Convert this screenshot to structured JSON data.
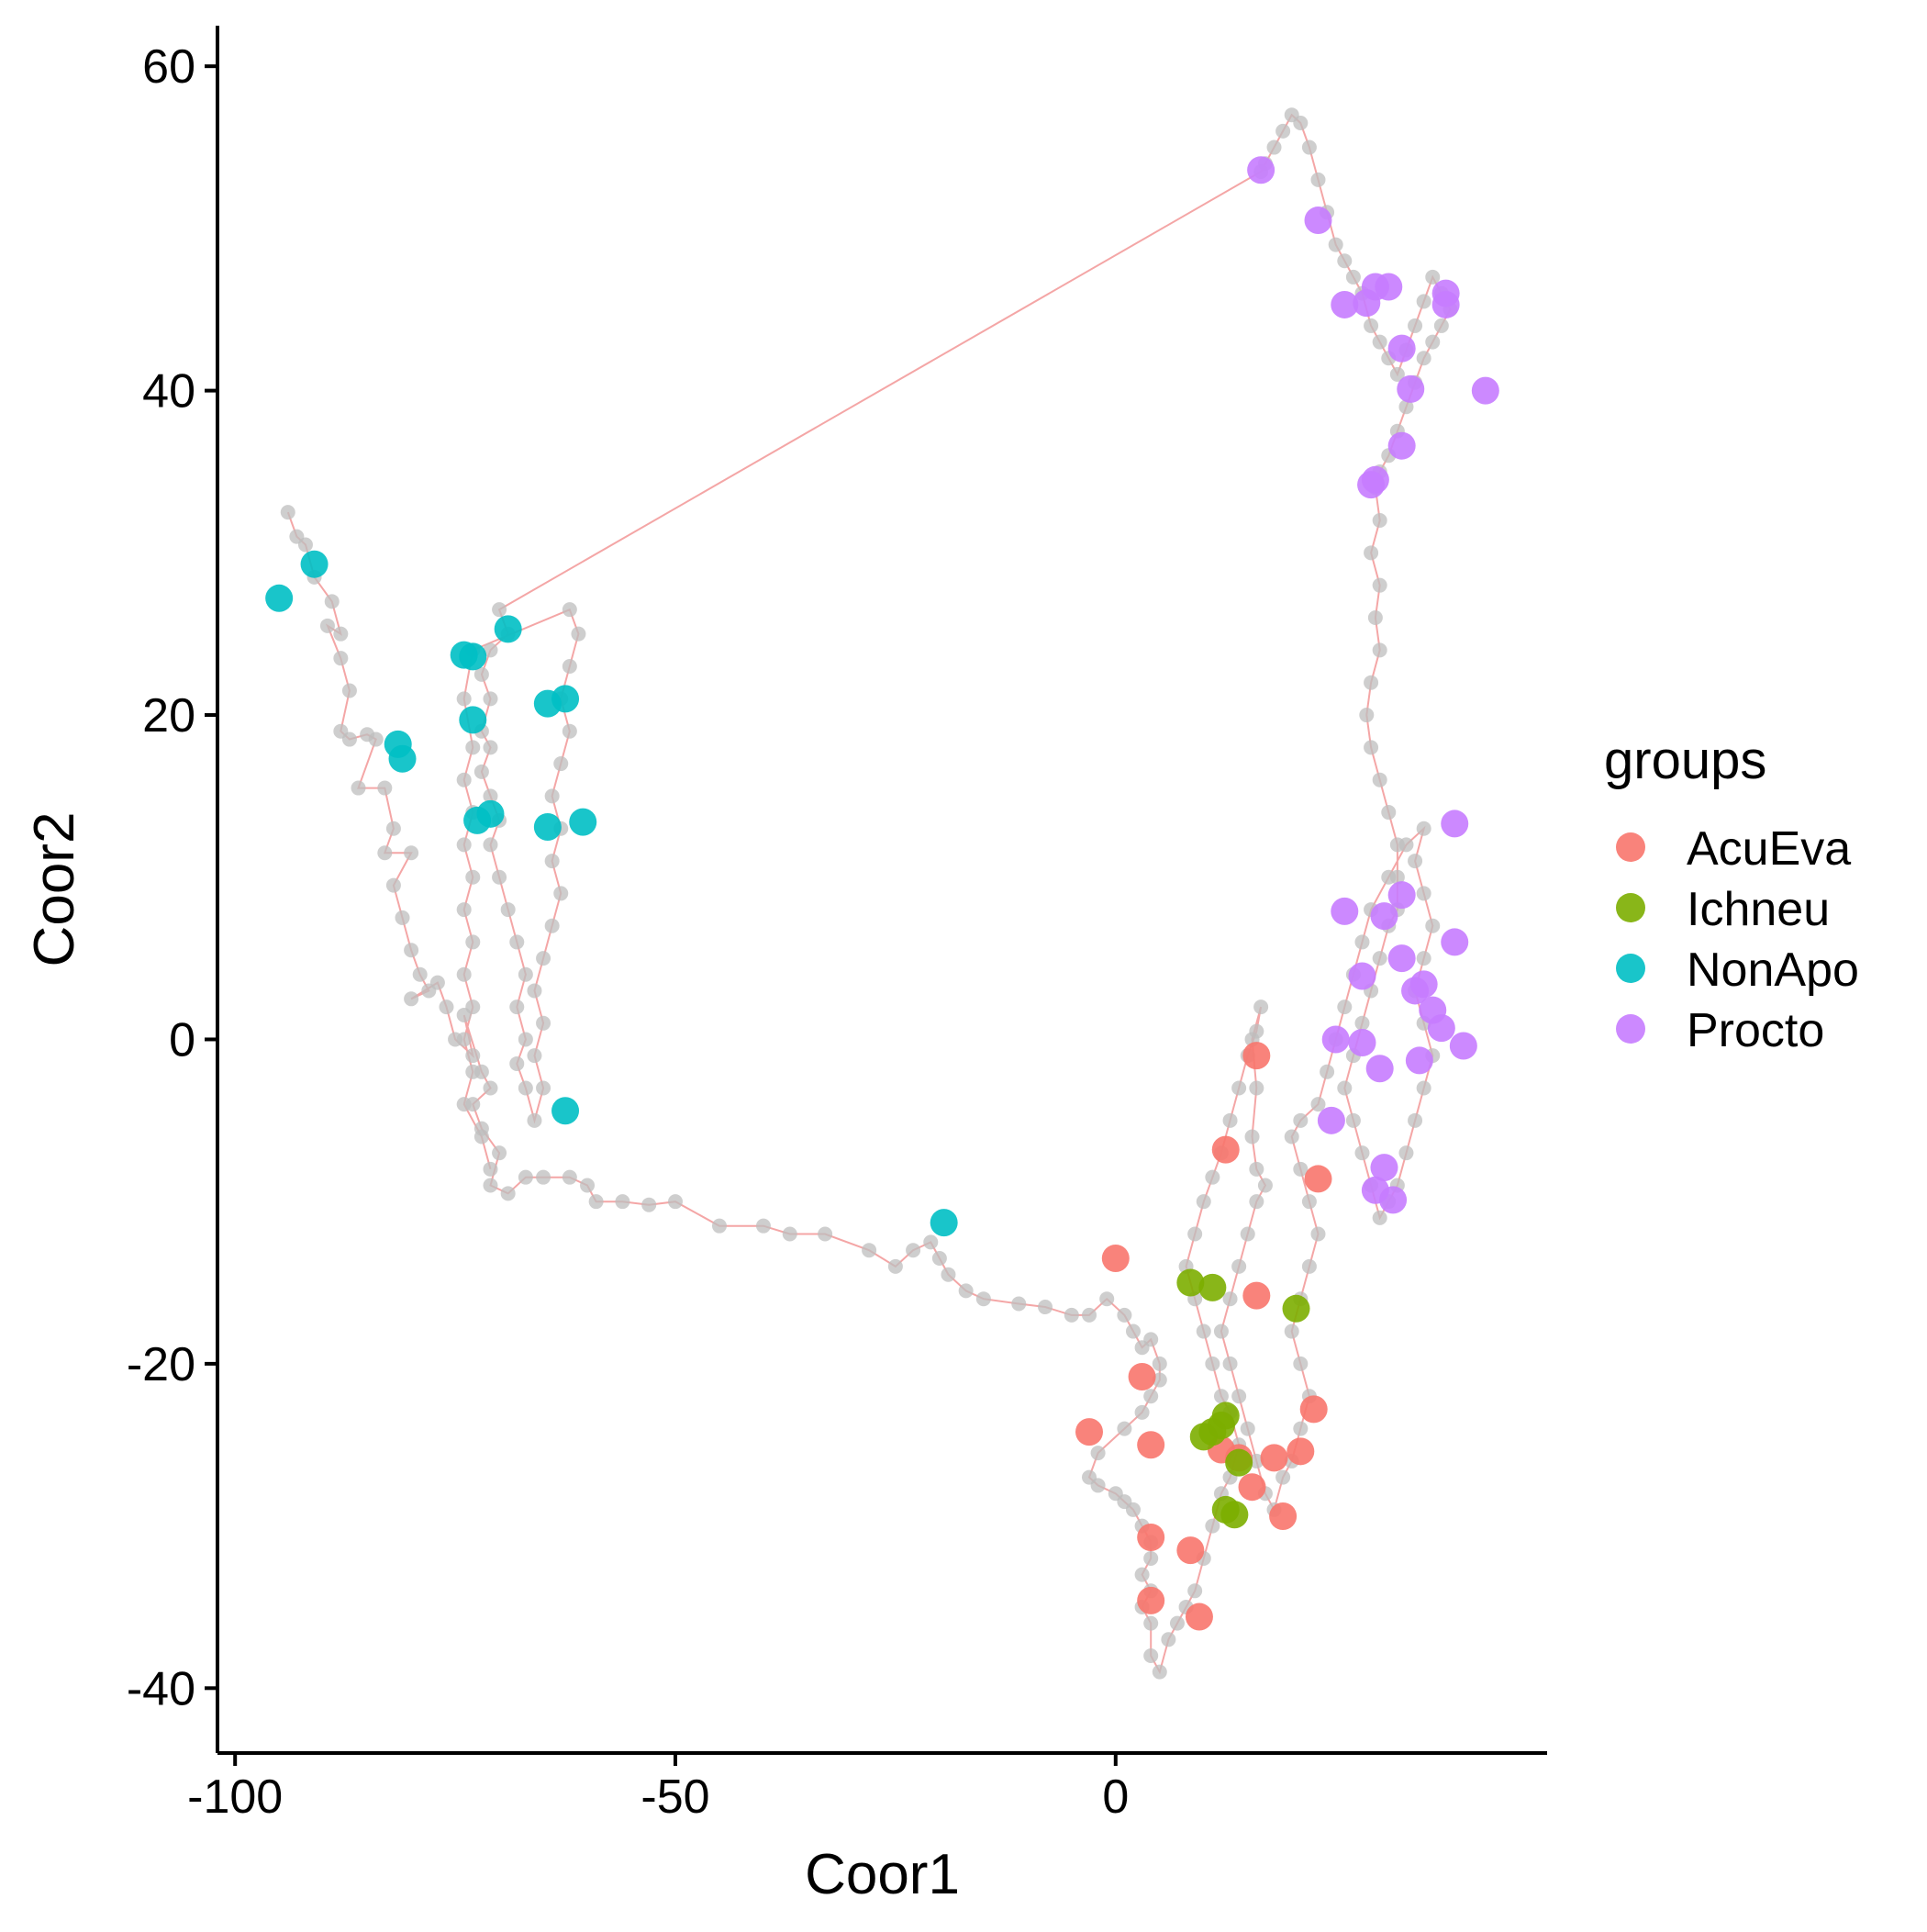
{
  "chart_data": {
    "type": "scatter",
    "title": "",
    "xlabel": "Coor1",
    "ylabel": "Coor2",
    "xlim": [
      -102,
      49
    ],
    "ylim": [
      -44,
      62.5
    ],
    "xticks": [
      -100,
      -50,
      0
    ],
    "xtick_labels": [
      "-100",
      "-50",
      "0"
    ],
    "yticks": [
      60,
      40,
      20,
      0,
      -20,
      -40
    ],
    "ytick_labels": [
      "60",
      "40",
      "20",
      "0",
      "-20",
      "-40"
    ],
    "grid": false,
    "legend": {
      "title": "groups",
      "placement": "right",
      "entries": [
        "AcuEva",
        "Ichneu",
        "NonApo",
        "Procto"
      ]
    },
    "background_path": {
      "point_color": "#bdbdbd",
      "line_color": "#f4a6a6",
      "points": [
        [
          -94,
          32.5
        ],
        [
          -93,
          31
        ],
        [
          -92,
          30.5
        ],
        [
          -91,
          28.5
        ],
        [
          -89,
          27
        ],
        [
          -88,
          25
        ],
        [
          -89.5,
          25.5
        ],
        [
          -88,
          23.5
        ],
        [
          -87,
          21.5
        ],
        [
          -88,
          19
        ],
        [
          -87,
          18.5
        ],
        [
          -85,
          18.8
        ],
        [
          -84,
          18.5
        ],
        [
          -86,
          15.5
        ],
        [
          -83,
          15.5
        ],
        [
          -82,
          13
        ],
        [
          -83,
          11.5
        ],
        [
          -80,
          11.5
        ],
        [
          -82,
          9.5
        ],
        [
          -81,
          7.5
        ],
        [
          -80,
          5.5
        ],
        [
          -79,
          4
        ],
        [
          -78,
          3
        ],
        [
          -80,
          2.5
        ],
        [
          -77,
          3.5
        ],
        [
          -76,
          2
        ],
        [
          -75,
          0
        ],
        [
          -73,
          -1
        ],
        [
          -74,
          1.5
        ],
        [
          -72,
          -2
        ],
        [
          -71,
          -3
        ],
        [
          -73,
          -4
        ],
        [
          -72,
          -5.5
        ],
        [
          -70,
          -7
        ],
        [
          -71,
          -9
        ],
        [
          -69,
          -9.5
        ],
        [
          -67,
          -8.5
        ],
        [
          -65,
          -8.5
        ],
        [
          -62,
          -8.5
        ],
        [
          -60,
          -9
        ],
        [
          -59,
          -10
        ],
        [
          -56,
          -10
        ],
        [
          -53,
          -10.2
        ],
        [
          -50,
          -10
        ],
        [
          -45,
          -11.5
        ],
        [
          -40,
          -11.5
        ],
        [
          -37,
          -12
        ],
        [
          -33,
          -12
        ],
        [
          -28,
          -13
        ],
        [
          -25,
          -14
        ],
        [
          -23,
          -13
        ],
        [
          -21,
          -12.5
        ],
        [
          -20,
          -13.5
        ],
        [
          -19,
          -14.5
        ],
        [
          -17,
          -15.5
        ],
        [
          -15,
          -16
        ],
        [
          -11,
          -16.3
        ],
        [
          -8,
          -16.5
        ],
        [
          -5,
          -17
        ],
        [
          -3,
          -17
        ],
        [
          -1,
          -16
        ],
        [
          1,
          -17
        ],
        [
          2,
          -18
        ],
        [
          3,
          -19
        ],
        [
          4,
          -18.5
        ],
        [
          5,
          -20
        ],
        [
          5,
          -21
        ],
        [
          4,
          -22
        ],
        [
          3,
          -23
        ],
        [
          1,
          -24
        ],
        [
          -2,
          -25.5
        ],
        [
          -3,
          -27
        ],
        [
          -2,
          -27.5
        ],
        [
          0,
          -28
        ],
        [
          1,
          -28.5
        ],
        [
          2,
          -29
        ],
        [
          3,
          -30
        ],
        [
          4,
          -31
        ],
        [
          4,
          -32
        ],
        [
          3,
          -33
        ],
        [
          4,
          -34
        ],
        [
          3,
          -35
        ],
        [
          4,
          -36
        ],
        [
          4,
          -38
        ],
        [
          5,
          -39
        ],
        [
          6,
          -37
        ],
        [
          7,
          -36
        ],
        [
          8,
          -35
        ],
        [
          9,
          -34
        ],
        [
          10,
          -32
        ],
        [
          11,
          -30
        ],
        [
          12,
          -28
        ],
        [
          13,
          -27
        ],
        [
          14,
          -25
        ],
        [
          13,
          -23
        ],
        [
          12,
          -22
        ],
        [
          11,
          -20
        ],
        [
          10,
          -18
        ],
        [
          9,
          -16
        ],
        [
          8,
          -14
        ],
        [
          9,
          -12
        ],
        [
          10,
          -10
        ],
        [
          11,
          -8.5
        ],
        [
          12,
          -7
        ],
        [
          13,
          -5
        ],
        [
          14,
          -3
        ],
        [
          15,
          -1
        ],
        [
          16,
          0.5
        ],
        [
          16.5,
          2
        ],
        [
          15.5,
          0
        ],
        [
          16,
          -3
        ],
        [
          15.5,
          -6
        ],
        [
          16,
          -8
        ],
        [
          17,
          -9
        ],
        [
          16,
          -10
        ],
        [
          15,
          -12
        ],
        [
          14,
          -14
        ],
        [
          13,
          -16
        ],
        [
          12,
          -18
        ],
        [
          13,
          -20
        ],
        [
          14,
          -22
        ],
        [
          15,
          -24
        ],
        [
          16,
          -26
        ],
        [
          17,
          -28
        ],
        [
          18,
          -29
        ],
        [
          19,
          -27
        ],
        [
          20,
          -26
        ],
        [
          21,
          -24
        ],
        [
          22,
          -22
        ],
        [
          21,
          -20
        ],
        [
          20,
          -18
        ],
        [
          21,
          -16
        ],
        [
          22,
          -14
        ],
        [
          23,
          -12
        ],
        [
          22,
          -10
        ],
        [
          21,
          -8
        ],
        [
          20,
          -6
        ],
        [
          21,
          -5
        ],
        [
          23,
          -4
        ],
        [
          24,
          -2
        ],
        [
          25,
          0
        ],
        [
          26,
          2
        ],
        [
          27,
          4
        ],
        [
          28,
          6
        ],
        [
          29,
          8
        ],
        [
          31,
          10
        ],
        [
          33,
          12
        ],
        [
          35,
          13
        ],
        [
          34,
          11
        ],
        [
          35,
          9
        ],
        [
          36,
          7
        ],
        [
          35,
          5
        ],
        [
          34,
          3
        ],
        [
          35,
          1
        ],
        [
          36,
          -1
        ],
        [
          35,
          -3
        ],
        [
          34,
          -5
        ],
        [
          33,
          -7
        ],
        [
          32,
          -9
        ],
        [
          31,
          -10
        ],
        [
          30,
          -11
        ],
        [
          29,
          -9
        ],
        [
          28,
          -7
        ],
        [
          27,
          -5
        ],
        [
          26,
          -3
        ],
        [
          27,
          -1
        ],
        [
          28,
          1
        ],
        [
          29,
          3
        ],
        [
          30,
          5
        ],
        [
          31,
          7
        ],
        [
          32,
          8
        ],
        [
          32,
          10
        ],
        [
          32,
          12
        ],
        [
          31,
          14
        ],
        [
          30,
          16
        ],
        [
          29,
          18
        ],
        [
          28.5,
          20
        ],
        [
          29,
          22
        ],
        [
          30,
          24
        ],
        [
          29.5,
          26
        ],
        [
          30,
          28
        ],
        [
          29,
          30
        ],
        [
          30,
          32
        ],
        [
          29.5,
          34
        ],
        [
          30,
          35
        ],
        [
          31,
          36
        ],
        [
          32,
          37.5
        ],
        [
          33,
          39
        ],
        [
          34,
          40.5
        ],
        [
          35,
          42
        ],
        [
          36,
          43
        ],
        [
          37,
          44
        ],
        [
          38,
          45
        ],
        [
          37,
          46
        ],
        [
          36,
          47
        ],
        [
          35,
          45.5
        ],
        [
          34,
          44
        ],
        [
          33,
          42.5
        ],
        [
          32,
          41
        ],
        [
          31,
          42
        ],
        [
          30,
          43
        ],
        [
          29,
          44
        ],
        [
          28,
          46
        ],
        [
          27,
          47
        ],
        [
          26,
          48
        ],
        [
          25,
          49
        ],
        [
          24,
          51
        ],
        [
          23,
          53
        ],
        [
          22,
          55
        ],
        [
          21,
          56.5
        ],
        [
          20,
          57
        ],
        [
          19,
          56
        ],
        [
          18,
          55
        ],
        [
          17,
          54
        ],
        [
          16.5,
          53.5
        ],
        [
          -70,
          26.5
        ],
        [
          -69,
          25
        ],
        [
          -71,
          24
        ],
        [
          -72,
          22.5
        ],
        [
          -71,
          21
        ],
        [
          -72,
          19
        ],
        [
          -71,
          18
        ],
        [
          -72,
          16.5
        ],
        [
          -71,
          15
        ],
        [
          -70,
          13.5
        ],
        [
          -71,
          12
        ],
        [
          -70,
          10
        ],
        [
          -69,
          8
        ],
        [
          -68,
          6
        ],
        [
          -67,
          4
        ],
        [
          -68,
          2
        ],
        [
          -67,
          0
        ],
        [
          -68,
          -1.5
        ],
        [
          -67,
          -3
        ],
        [
          -66,
          -5
        ],
        [
          -65,
          -3
        ],
        [
          -66,
          -1
        ],
        [
          -65,
          1
        ],
        [
          -66,
          3
        ],
        [
          -65,
          5
        ],
        [
          -64,
          7
        ],
        [
          -63,
          9
        ],
        [
          -64,
          11
        ],
        [
          -63,
          13
        ],
        [
          -64,
          15
        ],
        [
          -63,
          17
        ],
        [
          -62,
          19
        ],
        [
          -63,
          21
        ],
        [
          -62,
          23
        ],
        [
          -61,
          25
        ],
        [
          -62,
          26.5
        ],
        [
          -73,
          24
        ],
        [
          -74,
          21
        ],
        [
          -73,
          18
        ],
        [
          -74,
          16
        ],
        [
          -73,
          14
        ],
        [
          -74,
          12
        ],
        [
          -73,
          10
        ],
        [
          -74,
          8
        ],
        [
          -73,
          6
        ],
        [
          -74,
          4
        ],
        [
          -73,
          2
        ],
        [
          -74,
          0
        ],
        [
          -73,
          -2
        ],
        [
          -74,
          -4
        ],
        [
          -72,
          -6
        ],
        [
          -71,
          -8
        ]
      ]
    },
    "series": [
      {
        "name": "AcuEva",
        "color": "#f8766d",
        "points": [
          [
            16,
            -1
          ],
          [
            12.5,
            -6.8
          ],
          [
            23,
            -8.6
          ],
          [
            0,
            -13.5
          ],
          [
            16,
            -15.8
          ],
          [
            3,
            -20.8
          ],
          [
            22.5,
            -22.8
          ],
          [
            -3,
            -24.2
          ],
          [
            4,
            -25
          ],
          [
            12,
            -25.3
          ],
          [
            14,
            -25.8
          ],
          [
            21,
            -25.4
          ],
          [
            18,
            -25.8
          ],
          [
            15.5,
            -27.6
          ],
          [
            19,
            -29.4
          ],
          [
            4,
            -30.7
          ],
          [
            8.5,
            -31.5
          ],
          [
            4,
            -34.6
          ],
          [
            9.5,
            -35.6
          ]
        ]
      },
      {
        "name": "Ichneu",
        "color": "#7cae00",
        "points": [
          [
            8.5,
            -15
          ],
          [
            11,
            -15.3
          ],
          [
            20.5,
            -16.6
          ],
          [
            12.5,
            -23.2
          ],
          [
            12,
            -23.8
          ],
          [
            11,
            -24.2
          ],
          [
            10,
            -24.5
          ],
          [
            14,
            -26.1
          ],
          [
            12.5,
            -29
          ],
          [
            13.5,
            -29.3
          ]
        ]
      },
      {
        "name": "NonApo",
        "color": "#00bfc4",
        "points": [
          [
            -95,
            27.2
          ],
          [
            -91,
            29.3
          ],
          [
            -69,
            25.3
          ],
          [
            -74,
            23.7
          ],
          [
            -73,
            23.6
          ],
          [
            -73,
            19.7
          ],
          [
            -62.5,
            21
          ],
          [
            -64.5,
            20.7
          ],
          [
            -81.5,
            18.2
          ],
          [
            -81,
            17.3
          ],
          [
            -71,
            13.9
          ],
          [
            -72.5,
            13.5
          ],
          [
            -64.5,
            13.1
          ],
          [
            -60.5,
            13.4
          ],
          [
            -62.5,
            -4.4
          ],
          [
            -19.5,
            -11.3
          ]
        ]
      },
      {
        "name": "Procto",
        "color": "#c77cff",
        "points": [
          [
            16.5,
            53.6
          ],
          [
            23,
            50.5
          ],
          [
            31,
            46.4
          ],
          [
            29.5,
            46.4
          ],
          [
            28.5,
            45.4
          ],
          [
            26,
            45.3
          ],
          [
            37.5,
            46
          ],
          [
            37.5,
            45.3
          ],
          [
            32.5,
            42.6
          ],
          [
            42,
            40
          ],
          [
            33.5,
            40.1
          ],
          [
            32.5,
            36.6
          ],
          [
            29.5,
            34.5
          ],
          [
            29,
            34.2
          ],
          [
            38.5,
            13.3
          ],
          [
            26,
            7.9
          ],
          [
            32.5,
            8.9
          ],
          [
            30.5,
            7.6
          ],
          [
            38.5,
            6
          ],
          [
            32.5,
            5
          ],
          [
            28,
            3.9
          ],
          [
            35,
            3.4
          ],
          [
            34,
            3
          ],
          [
            36,
            1.8
          ],
          [
            37,
            0.7
          ],
          [
            25,
            0
          ],
          [
            28,
            -0.2
          ],
          [
            39.5,
            -0.4
          ],
          [
            34.5,
            -1.3
          ],
          [
            30,
            -1.8
          ],
          [
            24.5,
            -5
          ],
          [
            30.5,
            -7.9
          ],
          [
            29.5,
            -9.3
          ],
          [
            31.5,
            -9.9
          ]
        ]
      }
    ]
  }
}
